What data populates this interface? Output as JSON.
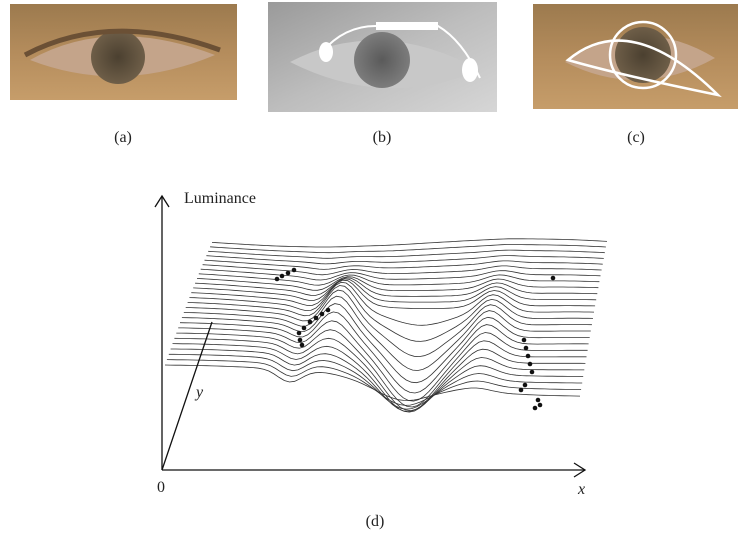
{
  "panels": [
    {
      "label": "(a)"
    },
    {
      "label": "(b)"
    },
    {
      "label": "(c)"
    }
  ],
  "plot": {
    "label": "(d)",
    "z_axis": "Luminance",
    "origin": "0",
    "x_axis": "x",
    "y_axis": "y"
  }
}
